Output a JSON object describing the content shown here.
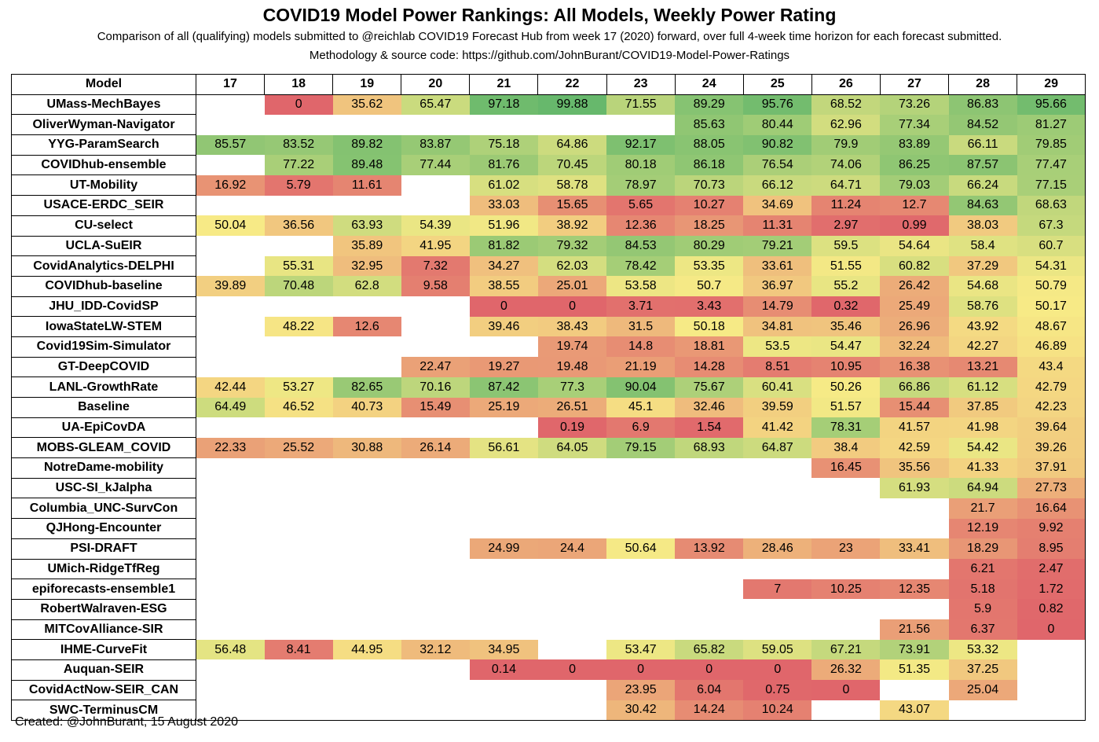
{
  "title": "COVID19 Model Power Rankings: All Models, Weekly Power Rating",
  "subtitle_line1": "Comparison of all (qualifying) models submitted to @reichlab COVID19 Forecast Hub from week 17 (2020) forward, over full 4-week time horizon for each forecast submitted.",
  "subtitle_line2": "Methodology & source code: https://github.com/JohnBurant/COVID19-Model-Power-Ratings",
  "footer": "Created: @JohnBurant, 15 August 2020",
  "colors": {
    "low": "#e0666b",
    "mid": "#f7ea86",
    "high": "#67b86c"
  },
  "chart_data": {
    "type": "heatmap",
    "row_header": "Model",
    "columns": [
      "17",
      "18",
      "19",
      "20",
      "21",
      "22",
      "23",
      "24",
      "25",
      "26",
      "27",
      "28",
      "29"
    ],
    "color_scale": {
      "min": 0,
      "mid": 50,
      "max": 100
    },
    "rows": [
      {
        "model": "UMass-MechBayes",
        "values": [
          null,
          0,
          35.62,
          65.47,
          97.18,
          99.88,
          71.55,
          89.29,
          95.76,
          68.52,
          73.26,
          86.83,
          95.66
        ]
      },
      {
        "model": "OliverWyman-Navigator",
        "values": [
          null,
          null,
          null,
          null,
          null,
          null,
          null,
          85.63,
          80.44,
          62.96,
          77.34,
          84.52,
          81.27
        ]
      },
      {
        "model": "YYG-ParamSearch",
        "values": [
          85.57,
          83.52,
          89.82,
          83.87,
          75.18,
          64.86,
          92.17,
          88.05,
          90.82,
          79.9,
          83.89,
          66.11,
          79.85
        ]
      },
      {
        "model": "COVIDhub-ensemble",
        "values": [
          null,
          77.22,
          89.48,
          77.44,
          81.76,
          70.45,
          80.18,
          86.18,
          76.54,
          74.06,
          86.25,
          87.57,
          77.47
        ]
      },
      {
        "model": "UT-Mobility",
        "values": [
          16.92,
          5.79,
          11.61,
          null,
          61.02,
          58.78,
          78.97,
          70.73,
          66.12,
          64.71,
          79.03,
          66.24,
          77.15
        ]
      },
      {
        "model": "USACE-ERDC_SEIR",
        "values": [
          null,
          null,
          null,
          null,
          33.03,
          15.65,
          5.65,
          10.27,
          34.69,
          11.24,
          12.7,
          84.63,
          68.63
        ]
      },
      {
        "model": "CU-select",
        "values": [
          50.04,
          36.56,
          63.93,
          54.39,
          51.96,
          38.92,
          12.36,
          18.25,
          11.31,
          2.97,
          0.99,
          38.03,
          67.3
        ]
      },
      {
        "model": "UCLA-SuEIR",
        "values": [
          null,
          null,
          35.89,
          41.95,
          81.82,
          79.32,
          84.53,
          80.29,
          79.21,
          59.5,
          54.64,
          58.4,
          60.7
        ]
      },
      {
        "model": "CovidAnalytics-DELPHI",
        "values": [
          null,
          55.31,
          32.95,
          7.32,
          34.27,
          62.03,
          78.42,
          53.35,
          33.61,
          51.55,
          60.82,
          37.29,
          54.31
        ]
      },
      {
        "model": "COVIDhub-baseline",
        "values": [
          39.89,
          70.48,
          62.8,
          9.58,
          38.55,
          25.01,
          53.58,
          50.7,
          36.97,
          55.2,
          26.42,
          54.68,
          50.79
        ]
      },
      {
        "model": "JHU_IDD-CovidSP",
        "values": [
          null,
          null,
          null,
          null,
          0,
          0,
          3.71,
          3.43,
          14.79,
          0.32,
          25.49,
          58.76,
          50.17
        ]
      },
      {
        "model": "IowaStateLW-STEM",
        "values": [
          null,
          48.22,
          12.6,
          null,
          39.46,
          38.43,
          31.5,
          50.18,
          34.81,
          35.46,
          26.96,
          43.92,
          48.67
        ]
      },
      {
        "model": "Covid19Sim-Simulator",
        "values": [
          null,
          null,
          null,
          null,
          null,
          19.74,
          14.8,
          18.81,
          53.5,
          54.47,
          32.24,
          42.27,
          46.89
        ]
      },
      {
        "model": "GT-DeepCOVID",
        "values": [
          null,
          null,
          null,
          22.47,
          19.27,
          19.48,
          21.19,
          14.28,
          8.51,
          10.95,
          16.38,
          13.21,
          43.4
        ]
      },
      {
        "model": "LANL-GrowthRate",
        "values": [
          42.44,
          53.27,
          82.65,
          70.16,
          87.42,
          77.3,
          90.04,
          75.67,
          60.41,
          50.26,
          66.86,
          61.12,
          42.79
        ]
      },
      {
        "model": "Baseline",
        "values": [
          64.49,
          46.52,
          40.73,
          15.49,
          25.19,
          26.51,
          45.1,
          32.46,
          39.59,
          51.57,
          15.44,
          37.85,
          42.23
        ]
      },
      {
        "model": "UA-EpiCovDA",
        "values": [
          null,
          null,
          null,
          null,
          null,
          0.19,
          6.9,
          1.54,
          41.42,
          78.31,
          41.57,
          41.98,
          39.64
        ]
      },
      {
        "model": "MOBS-GLEAM_COVID",
        "values": [
          22.33,
          25.52,
          30.88,
          26.14,
          56.61,
          64.05,
          79.15,
          68.93,
          64.87,
          38.4,
          42.59,
          54.42,
          39.26
        ]
      },
      {
        "model": "NotreDame-mobility",
        "values": [
          null,
          null,
          null,
          null,
          null,
          null,
          null,
          null,
          null,
          16.45,
          35.56,
          41.33,
          37.91
        ]
      },
      {
        "model": "USC-SI_kJalpha",
        "values": [
          null,
          null,
          null,
          null,
          null,
          null,
          null,
          null,
          null,
          null,
          61.93,
          64.94,
          27.73
        ]
      },
      {
        "model": "Columbia_UNC-SurvCon",
        "values": [
          null,
          null,
          null,
          null,
          null,
          null,
          null,
          null,
          null,
          null,
          null,
          21.7,
          16.64
        ]
      },
      {
        "model": "QJHong-Encounter",
        "values": [
          null,
          null,
          null,
          null,
          null,
          null,
          null,
          null,
          null,
          null,
          null,
          12.19,
          9.92
        ]
      },
      {
        "model": "PSI-DRAFT",
        "values": [
          null,
          null,
          null,
          null,
          24.99,
          24.4,
          50.64,
          13.92,
          28.46,
          23,
          33.41,
          18.29,
          8.95
        ]
      },
      {
        "model": "UMich-RidgeTfReg",
        "values": [
          null,
          null,
          null,
          null,
          null,
          null,
          null,
          null,
          null,
          null,
          null,
          6.21,
          2.47
        ]
      },
      {
        "model": "epiforecasts-ensemble1",
        "values": [
          null,
          null,
          null,
          null,
          null,
          null,
          null,
          null,
          7,
          10.25,
          12.35,
          5.18,
          1.72
        ]
      },
      {
        "model": "RobertWalraven-ESG",
        "values": [
          null,
          null,
          null,
          null,
          null,
          null,
          null,
          null,
          null,
          null,
          null,
          5.9,
          0.82
        ]
      },
      {
        "model": "MITCovAlliance-SIR",
        "values": [
          null,
          null,
          null,
          null,
          null,
          null,
          null,
          null,
          null,
          null,
          21.56,
          6.37,
          0
        ]
      },
      {
        "model": "IHME-CurveFit",
        "values": [
          56.48,
          8.41,
          44.95,
          32.12,
          34.95,
          null,
          53.47,
          65.82,
          59.05,
          67.21,
          73.91,
          53.32,
          null
        ]
      },
      {
        "model": "Auquan-SEIR",
        "values": [
          null,
          null,
          null,
          null,
          0.14,
          0,
          0,
          0,
          0,
          26.32,
          51.35,
          37.25,
          null
        ]
      },
      {
        "model": "CovidActNow-SEIR_CAN",
        "values": [
          null,
          null,
          null,
          null,
          null,
          null,
          23.95,
          6.04,
          0.75,
          0,
          null,
          25.04,
          null
        ]
      },
      {
        "model": "SWC-TerminusCM",
        "values": [
          null,
          null,
          null,
          null,
          null,
          null,
          30.42,
          14.24,
          10.24,
          null,
          43.07,
          null,
          null
        ]
      }
    ]
  }
}
